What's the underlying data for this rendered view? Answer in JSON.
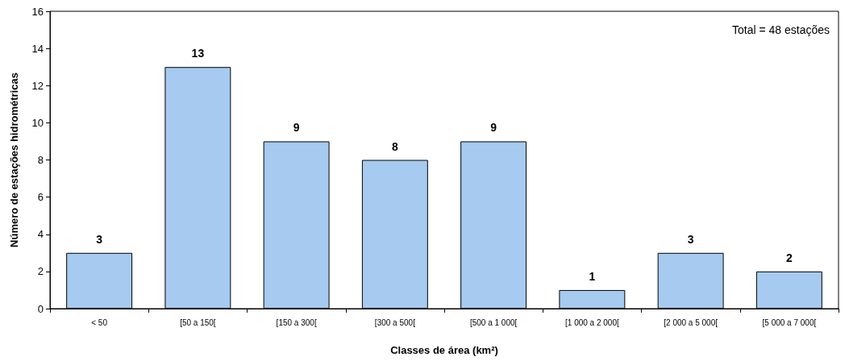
{
  "chart_data": {
    "type": "bar",
    "xlabel": "Classes de área (km²)",
    "ylabel": "Número de estações hidrométricas",
    "categories": [
      "< 50",
      "[50 a 150[",
      "[150 a 300[",
      "[300 a 500[",
      "[500 a 1 000[",
      "[1 000 a 2 000[",
      "[2 000 a 5 000[",
      "[5 000 a 7 000["
    ],
    "values": [
      3,
      13,
      9,
      8,
      9,
      1,
      3,
      2
    ],
    "color": "#a6caf0",
    "ylim": [
      0,
      16
    ],
    "yticks": [
      0,
      2,
      4,
      6,
      8,
      10,
      12,
      14,
      16
    ],
    "grid": false,
    "data_labels": true,
    "annotations": [
      "Total = 48 estações"
    ]
  }
}
